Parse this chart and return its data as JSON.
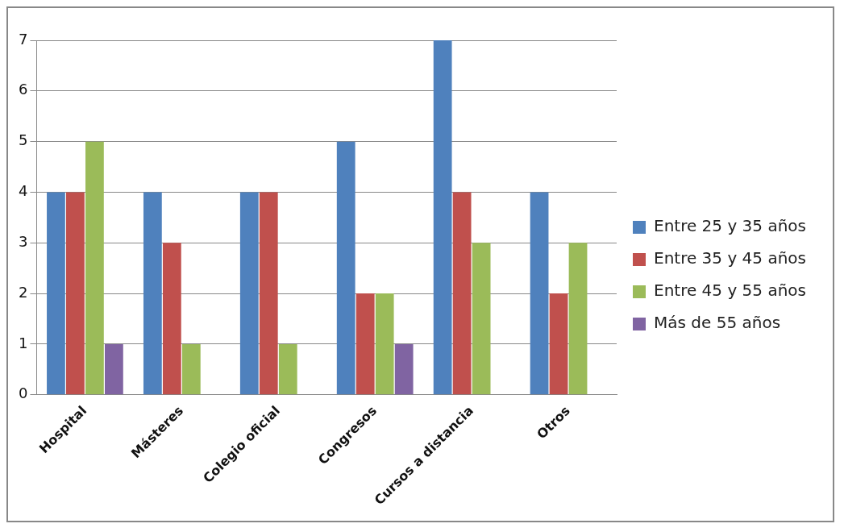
{
  "chart_data": {
    "type": "bar",
    "categories": [
      "Hospital",
      "Másteres",
      "Colegio oficial",
      "Congresos",
      "Cursos a distancia",
      "Otros"
    ],
    "series": [
      {
        "name": "Entre 25 y 35 años",
        "color": "#4f81bd",
        "values": [
          4,
          4,
          4,
          5,
          7,
          4
        ]
      },
      {
        "name": "Entre 35 y 45 años",
        "color": "#c0504d",
        "values": [
          4,
          3,
          4,
          2,
          4,
          2
        ]
      },
      {
        "name": "Entre 45 y 55 años",
        "color": "#9bbb59",
        "values": [
          5,
          1,
          1,
          2,
          3,
          3
        ]
      },
      {
        "name": "Más de 55 años",
        "color": "#8064a2",
        "values": [
          1,
          null,
          null,
          1,
          null,
          null
        ]
      }
    ],
    "ylim": [
      0,
      7
    ],
    "yticks": [
      0,
      1,
      2,
      3,
      4,
      5,
      6,
      7
    ],
    "grid": "y",
    "legend": "right"
  }
}
